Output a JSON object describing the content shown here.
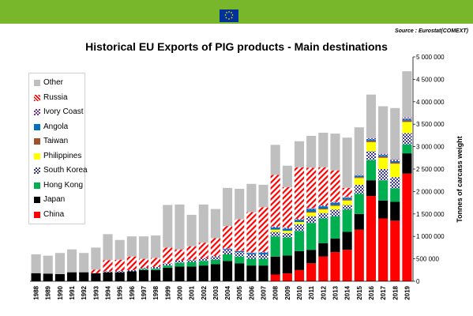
{
  "header": {
    "logo_alt": "European Commission"
  },
  "source": "Source : Eurostat(COMEXT)",
  "chart_data": {
    "type": "bar",
    "stacked": true,
    "title": "Historical EU Exports of PIG products - Main destinations",
    "ylabel": "Tonnes of carcass weight",
    "ylim": [
      0,
      5000000
    ],
    "yticks": [
      "0",
      "500 000",
      "1 000 000",
      "1 500 000",
      "2 000 000",
      "2 500 000",
      "3 000 000",
      "3 500 000",
      "4 000 000",
      "4 500 000",
      "5 000 000"
    ],
    "categories": [
      "1988",
      "1989",
      "1990",
      "1991",
      "1992",
      "1993",
      "1994",
      "1995",
      "1996",
      "1997",
      "1998",
      "1999",
      "2000",
      "2001",
      "2002",
      "2003",
      "2004",
      "2005",
      "2006",
      "2007",
      "2008",
      "2009",
      "2010",
      "2011",
      "2012",
      "2013",
      "2014",
      "2015",
      "2016",
      "2017",
      "2018",
      "2019"
    ],
    "legend_position": "left",
    "series": [
      {
        "name": "China",
        "color": "#ff0000",
        "pattern": "solid",
        "values": [
          0,
          0,
          0,
          0,
          0,
          0,
          0,
          0,
          0,
          0,
          0,
          0,
          0,
          0,
          0,
          0,
          0,
          0,
          0,
          0,
          150000,
          175000,
          250000,
          400000,
          550000,
          650000,
          700000,
          1150000,
          1900000,
          1400000,
          1350000,
          2400000
        ]
      },
      {
        "name": "Japan",
        "color": "#000000",
        "pattern": "solid",
        "values": [
          180000,
          170000,
          160000,
          200000,
          200000,
          180000,
          200000,
          200000,
          220000,
          250000,
          250000,
          300000,
          330000,
          330000,
          350000,
          380000,
          450000,
          400000,
          350000,
          350000,
          400000,
          400000,
          420000,
          300000,
          300000,
          300000,
          400000,
          350000,
          350000,
          400000,
          420000,
          450000
        ]
      },
      {
        "name": "Hong Kong",
        "color": "#00b050",
        "pattern": "solid",
        "values": [
          0,
          0,
          0,
          0,
          0,
          0,
          0,
          0,
          0,
          20000,
          30000,
          50000,
          80000,
          100000,
          100000,
          100000,
          150000,
          150000,
          150000,
          150000,
          450000,
          400000,
          450000,
          600000,
          550000,
          500000,
          500000,
          450000,
          450000,
          450000,
          300000,
          200000
        ]
      },
      {
        "name": "South Korea",
        "color": "#3a3a8f",
        "pattern": "check",
        "values": [
          0,
          0,
          0,
          0,
          0,
          0,
          20000,
          30000,
          30000,
          30000,
          40000,
          50000,
          50000,
          50000,
          60000,
          80000,
          100000,
          100000,
          100000,
          100000,
          100000,
          100000,
          150000,
          150000,
          120000,
          150000,
          100000,
          200000,
          200000,
          250000,
          250000,
          250000
        ]
      },
      {
        "name": "Philippines",
        "color": "#ffff00",
        "pattern": "solid",
        "values": [
          0,
          0,
          0,
          0,
          0,
          0,
          0,
          0,
          0,
          0,
          0,
          0,
          0,
          0,
          0,
          0,
          0,
          0,
          0,
          0,
          50000,
          50000,
          50000,
          80000,
          80000,
          80000,
          100000,
          150000,
          200000,
          250000,
          300000,
          250000
        ]
      },
      {
        "name": "Taiwan",
        "color": "#a0522d",
        "pattern": "solid",
        "values": [
          0,
          0,
          0,
          0,
          0,
          0,
          0,
          0,
          0,
          0,
          0,
          0,
          0,
          0,
          0,
          0,
          0,
          0,
          0,
          0,
          0,
          0,
          0,
          20000,
          20000,
          20000,
          20000,
          20000,
          30000,
          30000,
          30000,
          30000
        ]
      },
      {
        "name": "Angola",
        "color": "#0070c0",
        "pattern": "solid",
        "values": [
          0,
          0,
          0,
          0,
          0,
          0,
          0,
          0,
          0,
          0,
          0,
          0,
          0,
          0,
          0,
          0,
          20000,
          20000,
          30000,
          40000,
          50000,
          50000,
          50000,
          60000,
          50000,
          50000,
          40000,
          30000,
          30000,
          30000,
          30000,
          30000
        ]
      },
      {
        "name": "Ivory Coast",
        "color": "#7030a0",
        "pattern": "check",
        "values": [
          0,
          0,
          0,
          0,
          0,
          0,
          0,
          0,
          0,
          0,
          0,
          0,
          0,
          0,
          0,
          0,
          10000,
          10000,
          10000,
          10000,
          20000,
          20000,
          20000,
          20000,
          20000,
          20000,
          20000,
          20000,
          30000,
          30000,
          40000,
          40000
        ]
      },
      {
        "name": "Russia",
        "color": "#ff0000",
        "pattern": "hatch",
        "values": [
          0,
          0,
          0,
          0,
          0,
          80000,
          250000,
          250000,
          300000,
          200000,
          200000,
          350000,
          250000,
          300000,
          350000,
          400000,
          500000,
          700000,
          900000,
          1000000,
          1150000,
          900000,
          1150000,
          900000,
          850000,
          700000,
          200000,
          0,
          0,
          0,
          0,
          0
        ]
      },
      {
        "name": "Other",
        "color": "#bfbfbf",
        "pattern": "solid",
        "values": [
          420000,
          400000,
          470000,
          510000,
          430000,
          490000,
          580000,
          440000,
          450000,
          500000,
          500000,
          950000,
          1000000,
          700000,
          850000,
          650000,
          850000,
          680000,
          630000,
          500000,
          670000,
          480000,
          580000,
          710000,
          770000,
          820000,
          1120000,
          1060000,
          970000,
          1060000,
          1140000,
          1030000
        ]
      }
    ]
  }
}
